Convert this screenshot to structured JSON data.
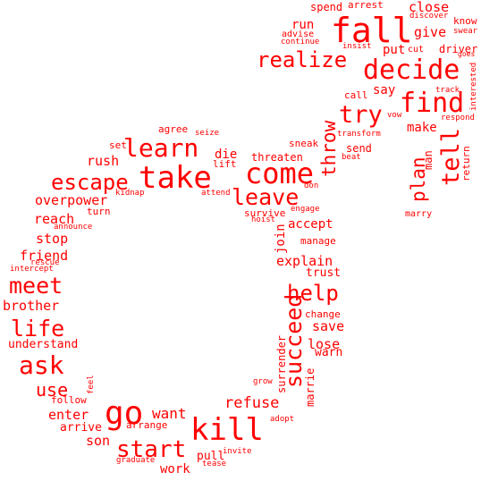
{
  "word_color": "#ff0000",
  "words": [
    {
      "text": "fall"
    },
    {
      "text": "decide"
    },
    {
      "text": "realize"
    },
    {
      "text": "find"
    },
    {
      "text": "try"
    },
    {
      "text": "tell"
    },
    {
      "text": "plan"
    },
    {
      "text": "throw"
    },
    {
      "text": "come"
    },
    {
      "text": "take"
    },
    {
      "text": "learn"
    },
    {
      "text": "escape"
    },
    {
      "text": "leave"
    },
    {
      "text": "meet"
    },
    {
      "text": "life"
    },
    {
      "text": "ask"
    },
    {
      "text": "go"
    },
    {
      "text": "kill"
    },
    {
      "text": "start"
    },
    {
      "text": "help"
    },
    {
      "text": "succeed"
    },
    {
      "text": "spend"
    },
    {
      "text": "arrest"
    },
    {
      "text": "close"
    },
    {
      "text": "discover"
    },
    {
      "text": "know"
    },
    {
      "text": "swear"
    },
    {
      "text": "run"
    },
    {
      "text": "advise"
    },
    {
      "text": "continue"
    },
    {
      "text": "give"
    },
    {
      "text": "insist"
    },
    {
      "text": "put"
    },
    {
      "text": "cut"
    },
    {
      "text": "driver"
    },
    {
      "text": "goes"
    },
    {
      "text": "interested"
    },
    {
      "text": "say"
    },
    {
      "text": "track"
    },
    {
      "text": "call"
    },
    {
      "text": "vow"
    },
    {
      "text": "respond"
    },
    {
      "text": "make"
    },
    {
      "text": "transform"
    },
    {
      "text": "man"
    },
    {
      "text": "return"
    },
    {
      "text": "agree"
    },
    {
      "text": "seize"
    },
    {
      "text": "set"
    },
    {
      "text": "sneak"
    },
    {
      "text": "send"
    },
    {
      "text": "beat"
    },
    {
      "text": "rush"
    },
    {
      "text": "die"
    },
    {
      "text": "lift"
    },
    {
      "text": "threaten"
    },
    {
      "text": "don"
    },
    {
      "text": "kidnap"
    },
    {
      "text": "attend"
    },
    {
      "text": "overpower"
    },
    {
      "text": "turn"
    },
    {
      "text": "engage"
    },
    {
      "text": "survive"
    },
    {
      "text": "hoist"
    },
    {
      "text": "accept"
    },
    {
      "text": "marry"
    },
    {
      "text": "reach"
    },
    {
      "text": "announce"
    },
    {
      "text": "join"
    },
    {
      "text": "stop"
    },
    {
      "text": "manage"
    },
    {
      "text": "friend"
    },
    {
      "text": "rescue"
    },
    {
      "text": "explain"
    },
    {
      "text": "intercept"
    },
    {
      "text": "trust"
    },
    {
      "text": "brother"
    },
    {
      "text": "change"
    },
    {
      "text": "save"
    },
    {
      "text": "understand"
    },
    {
      "text": "lose"
    },
    {
      "text": "surrender"
    },
    {
      "text": "warn"
    },
    {
      "text": "marrie"
    },
    {
      "text": "use"
    },
    {
      "text": "feel"
    },
    {
      "text": "follow"
    },
    {
      "text": "grow"
    },
    {
      "text": "refuse"
    },
    {
      "text": "want"
    },
    {
      "text": "enter"
    },
    {
      "text": "adopt"
    },
    {
      "text": "arrive"
    },
    {
      "text": "arrange"
    },
    {
      "text": "son"
    },
    {
      "text": "pull"
    },
    {
      "text": "invite"
    },
    {
      "text": "graduate"
    },
    {
      "text": "tease"
    },
    {
      "text": "work"
    }
  ]
}
